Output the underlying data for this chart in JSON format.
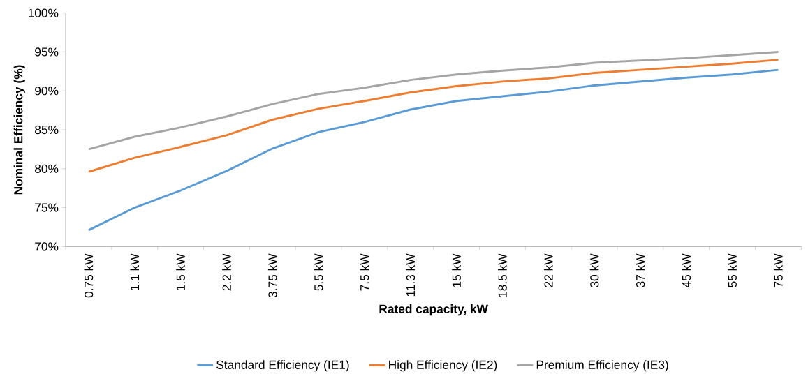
{
  "chart_data": {
    "type": "line",
    "categories": [
      "0.75 kW",
      "1.1 kW",
      "1.5 kW",
      "2.2 kW",
      "3.75 kW",
      "5.5 kW",
      "7.5 kW",
      "11.3 kW",
      "15 kW",
      "18.5 kW",
      "22 kW",
      "30 kW",
      "37 kW",
      "45 kW",
      "55 kW",
      "75 kW"
    ],
    "series": [
      {
        "name": "Standard Efficiency (IE1)",
        "color": "#5b9bd5",
        "values": [
          72.1,
          75.0,
          77.2,
          79.7,
          82.6,
          84.7,
          86.0,
          87.6,
          88.7,
          89.3,
          89.9,
          90.7,
          91.2,
          91.7,
          92.1,
          92.7
        ]
      },
      {
        "name": "High Efficiency (IE2)",
        "color": "#ed7d31",
        "values": [
          79.6,
          81.4,
          82.8,
          84.3,
          86.3,
          87.7,
          88.7,
          89.8,
          90.6,
          91.2,
          91.6,
          92.3,
          92.7,
          93.1,
          93.5,
          94.0
        ]
      },
      {
        "name": "Premium Efficiency (IE3)",
        "color": "#a5a5a5",
        "values": [
          82.5,
          84.1,
          85.3,
          86.7,
          88.3,
          89.6,
          90.4,
          91.4,
          92.1,
          92.6,
          93.0,
          93.6,
          93.9,
          94.2,
          94.6,
          95.0
        ]
      }
    ],
    "xlabel": "Rated capacity, kW",
    "ylabel": "Nominal Efficiency (%)",
    "ylim": [
      70,
      100
    ],
    "yticks": [
      {
        "value": 70,
        "label": "70%"
      },
      {
        "value": 75,
        "label": "75%"
      },
      {
        "value": 80,
        "label": "80%"
      },
      {
        "value": 85,
        "label": "85%"
      },
      {
        "value": 90,
        "label": "90%"
      },
      {
        "value": 95,
        "label": "95%"
      },
      {
        "value": 100,
        "label": "100%"
      }
    ],
    "legend": "bottom",
    "marker": "none",
    "line_style": "solid"
  }
}
